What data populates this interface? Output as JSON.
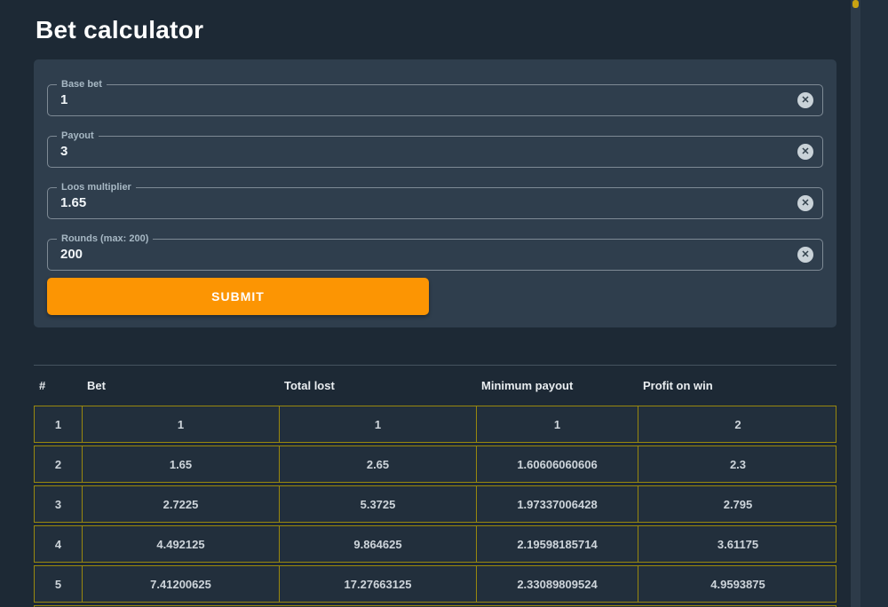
{
  "page": {
    "title": "Bet calculator"
  },
  "icons": {
    "clear": "✕"
  },
  "form": {
    "fields": [
      {
        "label": "Base bet",
        "value": "1"
      },
      {
        "label": "Payout",
        "value": "3"
      },
      {
        "label": "Loos multiplier",
        "value": "1.65"
      },
      {
        "label": "Rounds (max: 200)",
        "value": "200"
      }
    ],
    "submit_label": "SUBMIT"
  },
  "table": {
    "columns": [
      "#",
      "Bet",
      "Total lost",
      "Minimum payout",
      "Profit on win"
    ],
    "rows": [
      [
        "1",
        "1",
        "1",
        "1",
        "2"
      ],
      [
        "2",
        "1.65",
        "2.65",
        "1.60606060606",
        "2.3"
      ],
      [
        "3",
        "2.7225",
        "5.3725",
        "1.97337006428",
        "2.795"
      ],
      [
        "4",
        "4.492125",
        "9.864625",
        "2.19598185714",
        "3.61175"
      ],
      [
        "5",
        "7.41200625",
        "17.27663125",
        "2.33089809524",
        "4.9593875"
      ]
    ]
  },
  "colors": {
    "background": "#1d2935",
    "card": "#2f3e4d",
    "accent_orange": "#fc9503",
    "table_border": "#99880e",
    "scrollbar_thumb": "#c9a312"
  }
}
